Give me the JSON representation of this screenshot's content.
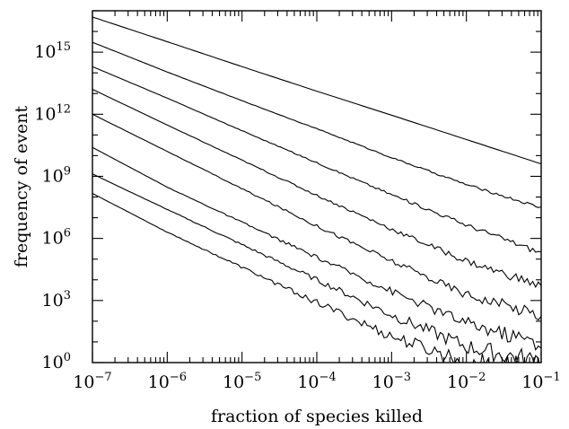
{
  "chart_data": {
    "type": "line",
    "title": "",
    "xlabel": "fraction of species killed",
    "ylabel": "frequency of event",
    "xscale": "log",
    "yscale": "log",
    "xlim": [
      1e-07,
      0.1
    ],
    "ylim": [
      1,
      1e+17
    ],
    "grid": false,
    "x_tick_labels": [
      {
        "base": "10",
        "exp": "−7",
        "value": 1e-07
      },
      {
        "base": "10",
        "exp": "−6",
        "value": 1e-06
      },
      {
        "base": "10",
        "exp": "−5",
        "value": 1e-05
      },
      {
        "base": "10",
        "exp": "−4",
        "value": 0.0001
      },
      {
        "base": "10",
        "exp": "−3",
        "value": 0.001
      },
      {
        "base": "10",
        "exp": "−2",
        "value": 0.01
      },
      {
        "base": "10",
        "exp": "−1",
        "value": 0.1
      }
    ],
    "y_tick_labels": [
      {
        "base": "10",
        "exp": "0",
        "value": 1
      },
      {
        "base": "10",
        "exp": "3",
        "value": 1000.0
      },
      {
        "base": "10",
        "exp": "6",
        "value": 1000000.0
      },
      {
        "base": "10",
        "exp": "9",
        "value": 1000000000.0
      },
      {
        "base": "10",
        "exp": "12",
        "value": 1000000000000.0
      },
      {
        "base": "10",
        "exp": "15",
        "value": 1000000000000000.0
      }
    ],
    "series": [
      {
        "x": [
          1e-07,
          1e-06,
          1e-05,
          0.0001,
          0.001,
          0.01,
          0.1
        ],
        "y": [
          5e+16,
          3200000000000000.0,
          200000000000000.0,
          13000000000000.0,
          900000000000.0,
          60000000000.0,
          4000000000.0
        ],
        "noise": 0.0
      },
      {
        "x": [
          1e-07,
          1e-06,
          1e-05,
          0.0001,
          0.001,
          0.01,
          0.1
        ],
        "y": [
          3000000000000000.0,
          110000000000000.0,
          4500000000000.0,
          200000000000.0,
          8000000000.0,
          400000000.0,
          30000000.0
        ],
        "noise": 0.05
      },
      {
        "x": [
          1e-07,
          1e-06,
          1e-05,
          0.0001,
          0.001,
          0.01,
          0.1
        ],
        "y": [
          200000000000000.0,
          6000000000000.0,
          160000000000.0,
          4500000000.0,
          130000000.0,
          4500000.0,
          200000.0
        ],
        "noise": 0.1
      },
      {
        "x": [
          1e-07,
          1e-06,
          1e-05,
          0.0001,
          0.001,
          0.01,
          0.1
        ],
        "y": [
          16000000000000.0,
          300000000000.0,
          6000000000.0,
          120000000.0,
          2800000.0,
          80000.0,
          5000.0
        ],
        "noise": 0.16
      },
      {
        "x": [
          1e-07,
          1e-06,
          1e-05,
          0.0001,
          0.001,
          0.01,
          0.1
        ],
        "y": [
          1000000000000.0,
          16000000000.0,
          250000000.0,
          4000000.0,
          80000.0,
          2000.0,
          200.0
        ],
        "noise": 0.22
      },
      {
        "x": [
          1e-07,
          1e-06,
          1e-05,
          0.0001,
          0.001,
          0.01,
          0.1
        ],
        "y": [
          25000000000.0,
          300000000.0,
          6000000.0,
          120000.0,
          2800.0,
          80,
          8
        ],
        "noise": 0.3
      },
      {
        "x": [
          1e-07,
          1e-06,
          1e-05,
          0.0001,
          0.001,
          0.01,
          0.1
        ],
        "y": [
          1300000000.0,
          25000000.0,
          500000.0,
          10000.0,
          200.0,
          6,
          1
        ],
        "noise": 0.38
      },
      {
        "x": [
          1e-07,
          1e-06,
          1e-05,
          0.0001,
          0.001,
          0.01,
          0.1
        ],
        "y": [
          150000000.0,
          2000000.0,
          40000.0,
          800.0,
          18,
          1,
          0.5
        ],
        "noise": 0.45
      }
    ]
  }
}
